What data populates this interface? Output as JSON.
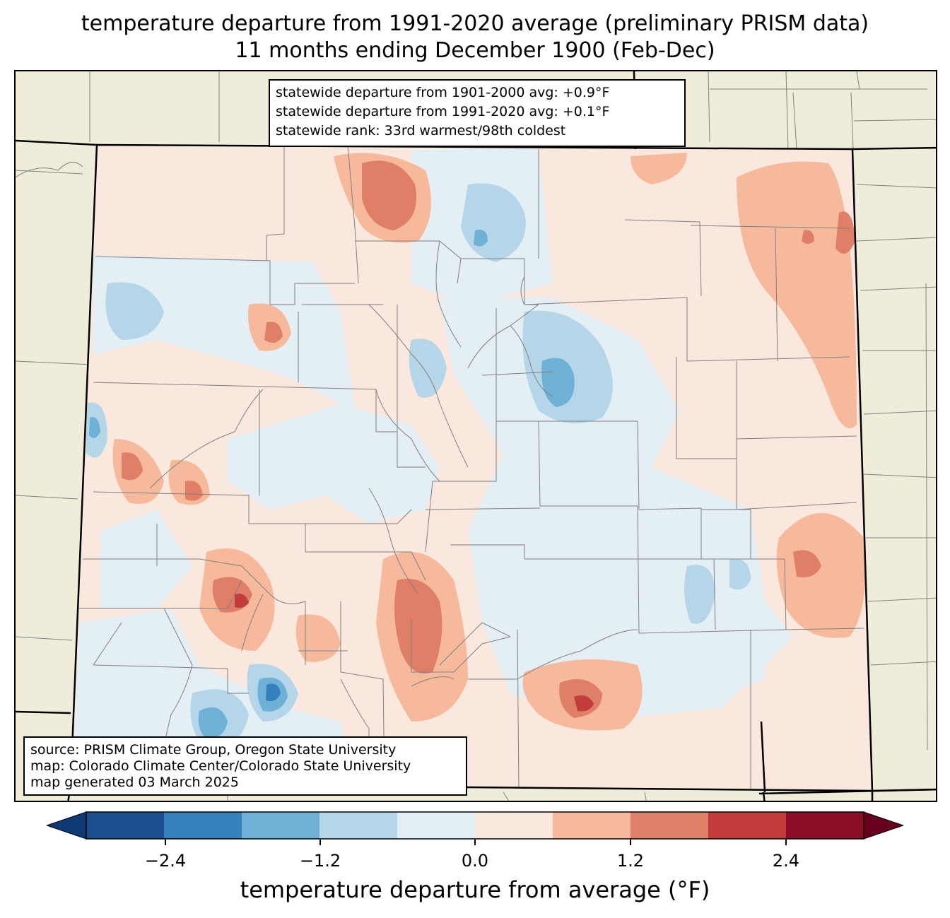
{
  "title": {
    "line1": "temperature departure from 1991-2020 average (preliminary PRISM data)",
    "line2": "11 months ending December 1900 (Feb-Dec)"
  },
  "stats": {
    "line1": "statewide departure from 1901-2000 avg: +0.9°F",
    "line2": "statewide departure from 1991-2020 avg: +0.1°F",
    "line3": "statewide rank: 33rd warmest/98th coldest"
  },
  "source": {
    "line1": "source: PRISM Climate Group, Oregon State University",
    "line2": "map: Colorado Climate Center/Colorado State University",
    "line3": "map generated 03 March 2025"
  },
  "colorbar": {
    "label": "temperature departure from average (°F)",
    "ticks": [
      "−2.4",
      "−1.2",
      "0.0",
      "1.2",
      "2.4"
    ],
    "bins": [
      -3.0,
      -2.4,
      -1.8,
      -1.2,
      -0.6,
      0.0,
      0.6,
      1.2,
      1.8,
      2.4,
      3.0
    ],
    "colors": [
      "#0d3a74",
      "#1b4f8f",
      "#3581bd",
      "#6fb0d6",
      "#b4d6e8",
      "#e4eef5",
      "#fae8de",
      "#f7b99b",
      "#e07f68",
      "#c13c3b",
      "#8b0d27",
      "#67001f"
    ]
  },
  "colors": {
    "background_land": "#efedda",
    "state_fill": "#fae8de",
    "border": "#000000",
    "county_line": "#808080"
  }
}
